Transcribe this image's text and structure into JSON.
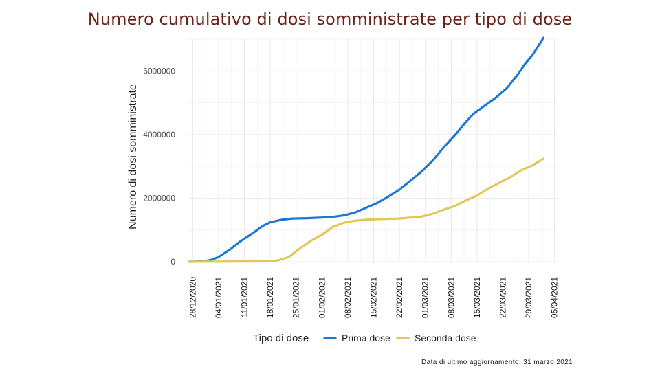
{
  "slide": {
    "title": "Numero cumulativo di dosi somministrate per tipo di dose",
    "footnote": "Data di ultimo aggiornamento: 31 marzo 2021"
  },
  "chart_data": {
    "type": "line",
    "ylabel": "Numero di dosi somministrate",
    "xlabel": "",
    "ylim": [
      0,
      7000000
    ],
    "xlim": [
      "2020-12-27",
      "2021-04-06"
    ],
    "y_ticks": [
      0,
      2000000,
      4000000,
      6000000
    ],
    "y_tick_labels": [
      "0",
      "2000000",
      "4000000",
      "6000000"
    ],
    "x_ticks": [
      "2020-12-28",
      "2021-01-04",
      "2021-01-11",
      "2021-01-18",
      "2021-01-25",
      "2021-02-01",
      "2021-02-08",
      "2021-02-15",
      "2021-02-22",
      "2021-03-01",
      "2021-03-08",
      "2021-03-15",
      "2021-03-22",
      "2021-03-29",
      "2021-04-05"
    ],
    "x_tick_labels": [
      "28/12/2020",
      "04/01/2021",
      "11/01/2021",
      "18/01/2021",
      "25/01/2021",
      "01/02/2021",
      "08/02/2021",
      "15/02/2021",
      "22/02/2021",
      "01/03/2021",
      "08/03/2021",
      "15/03/2021",
      "22/03/2021",
      "29/03/2021",
      "05/04/2021"
    ],
    "grid": true,
    "legend": {
      "title": "Tipo di dose",
      "position": "bottom"
    },
    "series": [
      {
        "name": "Prima dose",
        "color": "#1f77d4",
        "points": [
          [
            "2020-12-27",
            0
          ],
          [
            "2020-12-31",
            10000
          ],
          [
            "2021-01-02",
            60000
          ],
          [
            "2021-01-04",
            150000
          ],
          [
            "2021-01-07",
            380000
          ],
          [
            "2021-01-10",
            650000
          ],
          [
            "2021-01-13",
            880000
          ],
          [
            "2021-01-16",
            1130000
          ],
          [
            "2021-01-18",
            1240000
          ],
          [
            "2021-01-21",
            1320000
          ],
          [
            "2021-01-24",
            1360000
          ],
          [
            "2021-01-28",
            1370000
          ],
          [
            "2021-02-01",
            1390000
          ],
          [
            "2021-02-04",
            1410000
          ],
          [
            "2021-02-07",
            1460000
          ],
          [
            "2021-02-10",
            1550000
          ],
          [
            "2021-02-13",
            1700000
          ],
          [
            "2021-02-16",
            1850000
          ],
          [
            "2021-02-19",
            2050000
          ],
          [
            "2021-02-22",
            2270000
          ],
          [
            "2021-02-25",
            2550000
          ],
          [
            "2021-02-28",
            2840000
          ],
          [
            "2021-03-03",
            3180000
          ],
          [
            "2021-03-06",
            3600000
          ],
          [
            "2021-03-09",
            3980000
          ],
          [
            "2021-03-12",
            4400000
          ],
          [
            "2021-03-14",
            4650000
          ],
          [
            "2021-03-17",
            4900000
          ],
          [
            "2021-03-20",
            5150000
          ],
          [
            "2021-03-23",
            5450000
          ],
          [
            "2021-03-26",
            5880000
          ],
          [
            "2021-03-28",
            6220000
          ],
          [
            "2021-03-30",
            6500000
          ],
          [
            "2021-04-01",
            6850000
          ],
          [
            "2021-04-02",
            7040000
          ]
        ]
      },
      {
        "name": "Seconda dose",
        "color": "#e0c85a",
        "points": [
          [
            "2020-12-27",
            0
          ],
          [
            "2021-01-17",
            10000
          ],
          [
            "2021-01-20",
            40000
          ],
          [
            "2021-01-23",
            150000
          ],
          [
            "2021-01-26",
            420000
          ],
          [
            "2021-01-29",
            660000
          ],
          [
            "2021-02-01",
            850000
          ],
          [
            "2021-02-04",
            1100000
          ],
          [
            "2021-02-07",
            1230000
          ],
          [
            "2021-02-10",
            1290000
          ],
          [
            "2021-02-13",
            1320000
          ],
          [
            "2021-02-16",
            1340000
          ],
          [
            "2021-02-19",
            1350000
          ],
          [
            "2021-02-22",
            1360000
          ],
          [
            "2021-02-25",
            1390000
          ],
          [
            "2021-02-28",
            1420000
          ],
          [
            "2021-03-03",
            1510000
          ],
          [
            "2021-03-06",
            1640000
          ],
          [
            "2021-03-09",
            1750000
          ],
          [
            "2021-03-12",
            1930000
          ],
          [
            "2021-03-15",
            2080000
          ],
          [
            "2021-03-18",
            2300000
          ],
          [
            "2021-03-21",
            2480000
          ],
          [
            "2021-03-24",
            2660000
          ],
          [
            "2021-03-27",
            2880000
          ],
          [
            "2021-03-30",
            3030000
          ],
          [
            "2021-04-02",
            3240000
          ]
        ]
      }
    ]
  }
}
